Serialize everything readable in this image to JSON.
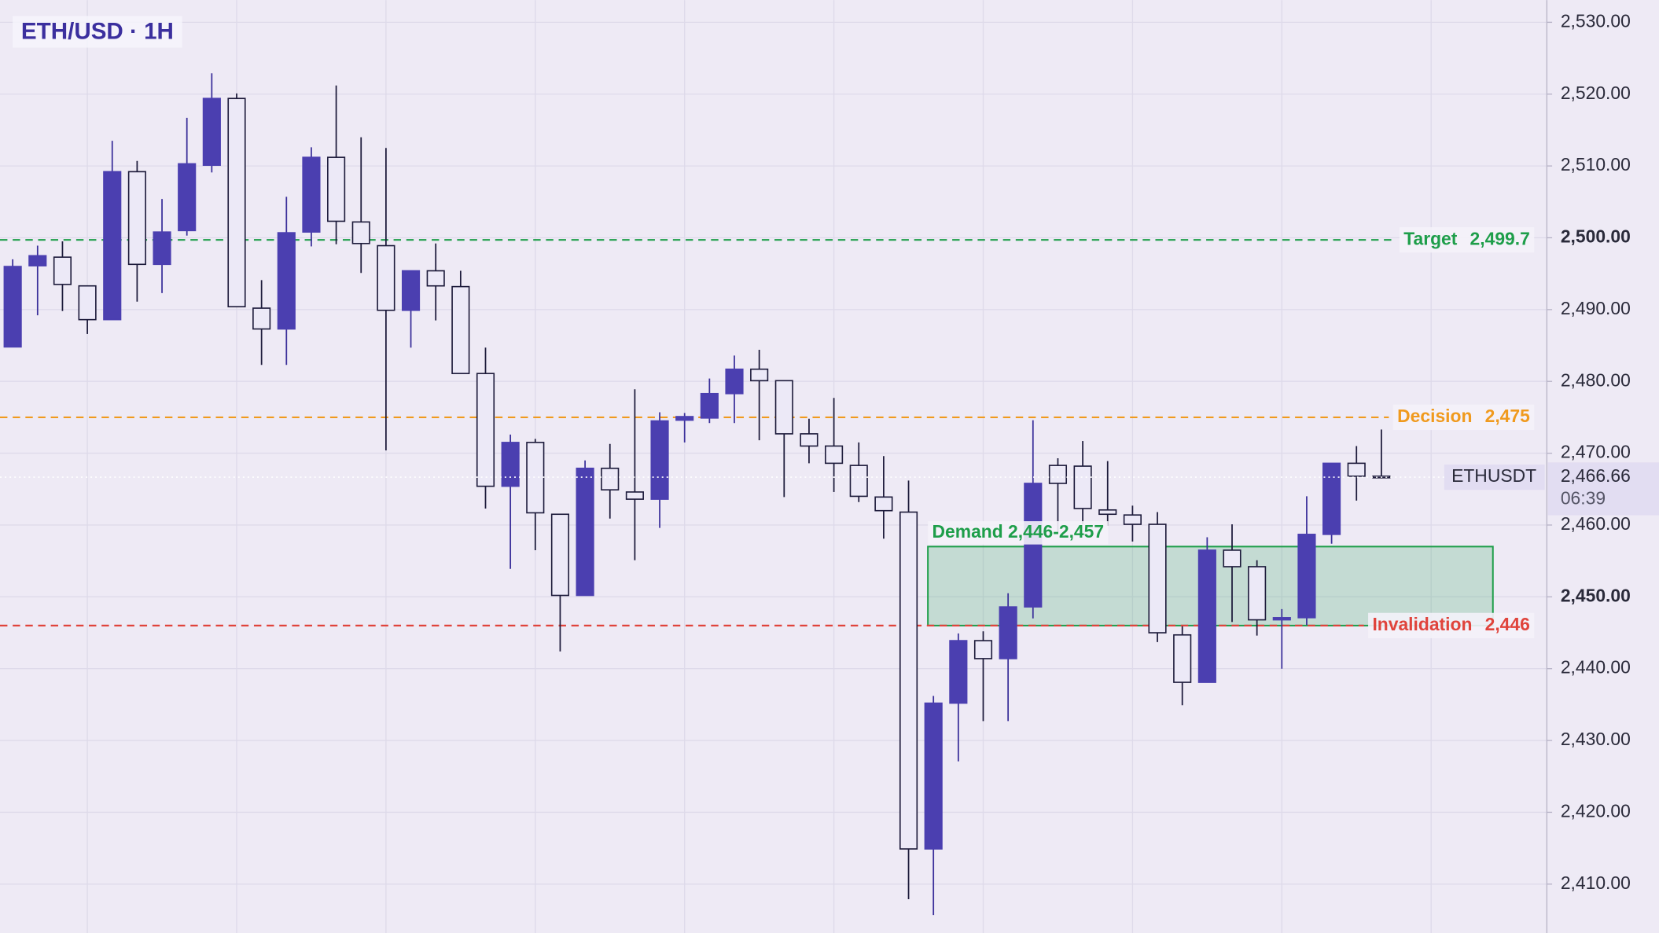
{
  "chart_data": {
    "type": "candlestick",
    "title": "ETH/USD · 1H",
    "open": [
      2484.8,
      2496.1,
      2497.3,
      2493.3,
      2488.6,
      2509.2,
      2496.3,
      2501.0,
      2510.1,
      2519.4,
      2490.2,
      2487.3,
      2500.8,
      2511.2,
      2502.2,
      2498.9,
      2489.9,
      2495.4,
      2493.2,
      2481.1,
      2465.4,
      2471.5,
      2461.5,
      2450.2,
      2467.9,
      2464.6,
      2463.6,
      2474.6,
      2474.9,
      2478.3,
      2481.7,
      2480.1,
      2472.7,
      2471.0,
      2468.3,
      2463.9,
      2461.8,
      2414.9,
      2435.2,
      2443.9,
      2441.4,
      2448.6,
      2468.3,
      2468.2,
      2462.1,
      2461.4,
      2460.1,
      2444.7,
      2438.1,
      2456.5,
      2454.2,
      2446.8,
      2447.1,
      2458.7,
      2468.6,
      2466.8
    ],
    "high": [
      2497.0,
      2498.9,
      2499.5,
      2493.3,
      2513.5,
      2510.7,
      2505.4,
      2516.7,
      2522.9,
      2520.1,
      2494.1,
      2505.7,
      2512.6,
      2521.2,
      2514.0,
      2512.5,
      2495.4,
      2499.2,
      2495.4,
      2484.7,
      2472.6,
      2472.0,
      2461.5,
      2469.0,
      2471.3,
      2478.9,
      2475.7,
      2475.6,
      2480.4,
      2483.6,
      2484.4,
      2480.1,
      2474.8,
      2477.7,
      2471.5,
      2469.6,
      2466.2,
      2436.2,
      2444.9,
      2445.2,
      2450.5,
      2474.6,
      2469.3,
      2471.7,
      2468.9,
      2462.7,
      2461.8,
      2445.9,
      2458.3,
      2460.1,
      2455.1,
      2448.3,
      2464.0,
      2468.6,
      2471.0,
      2473.3
    ],
    "low": [
      2484.8,
      2489.2,
      2489.8,
      2486.6,
      2488.6,
      2491.1,
      2492.3,
      2500.3,
      2509.1,
      2490.4,
      2482.3,
      2482.3,
      2498.8,
      2499.1,
      2495.1,
      2470.4,
      2484.7,
      2488.5,
      2481.1,
      2462.3,
      2453.9,
      2456.5,
      2442.4,
      2450.2,
      2460.9,
      2455.1,
      2459.6,
      2471.5,
      2474.2,
      2474.2,
      2471.8,
      2463.9,
      2468.6,
      2464.6,
      2463.2,
      2458.1,
      2407.9,
      2405.7,
      2427.1,
      2432.7,
      2432.7,
      2447.0,
      2459.0,
      2460.1,
      2459.9,
      2457.7,
      2443.7,
      2434.9,
      2438.1,
      2446.5,
      2444.6,
      2440.0,
      2446.1,
      2457.4,
      2463.4,
      2466.5
    ],
    "close": [
      2496.0,
      2497.5,
      2493.5,
      2488.6,
      2509.2,
      2496.3,
      2500.8,
      2510.3,
      2519.4,
      2490.4,
      2487.3,
      2500.7,
      2511.2,
      2502.3,
      2499.2,
      2489.9,
      2495.4,
      2493.3,
      2481.1,
      2465.4,
      2471.5,
      2461.7,
      2450.2,
      2467.9,
      2464.9,
      2463.6,
      2474.5,
      2475.1,
      2478.3,
      2481.7,
      2480.1,
      2472.7,
      2471.0,
      2468.6,
      2464.0,
      2462.0,
      2414.9,
      2435.2,
      2443.9,
      2441.4,
      2448.6,
      2465.8,
      2465.8,
      2462.3,
      2461.5,
      2460.1,
      2445.0,
      2438.1,
      2456.5,
      2454.2,
      2446.8,
      2447.1,
      2458.7,
      2468.6,
      2466.8,
      2466.66
    ],
    "colors": {
      "up": "#4b3fb0",
      "down_fill": "#ece9f7",
      "down_stroke": "#1c1a3a"
    },
    "ylim": [
      2403.2,
      2533.1
    ],
    "yticks": [
      {
        "value": 2410,
        "label": "2,410.00"
      },
      {
        "value": 2420,
        "label": "2,420.00"
      },
      {
        "value": 2430,
        "label": "2,430.00"
      },
      {
        "value": 2440,
        "label": "2,440.00"
      },
      {
        "value": 2450,
        "label": "2,450.00"
      },
      {
        "value": 2460,
        "label": "2,460.00"
      },
      {
        "value": 2470,
        "label": "2,470.00"
      },
      {
        "value": 2480,
        "label": "2,480.00"
      },
      {
        "value": 2490,
        "label": "2,490.00"
      },
      {
        "value": 2500,
        "label": "2,500.00"
      },
      {
        "value": 2510,
        "label": "2,510.00"
      },
      {
        "value": 2520,
        "label": "2,520.00"
      },
      {
        "value": 2530,
        "label": "2,530.00"
      }
    ],
    "grid": true,
    "levels": [
      {
        "name": "Target",
        "value": 2499.7,
        "value_label": "2,499.7",
        "color": "#1e9e4a"
      },
      {
        "name": "Decision",
        "value": 2475,
        "value_label": "2,475",
        "color": "#f09a1e"
      },
      {
        "name": "Invalidation",
        "value": 2446,
        "value_label": "2,446",
        "color": "#e0443c"
      }
    ],
    "zone": {
      "label": "Demand 2,446-2,457",
      "low": 2446,
      "high": 2457,
      "color": "#1e9e4a"
    },
    "last_price": {
      "symbol": "ETHUSDT",
      "value": 2466.66,
      "label": "2,466.66",
      "countdown": "06:39"
    }
  }
}
